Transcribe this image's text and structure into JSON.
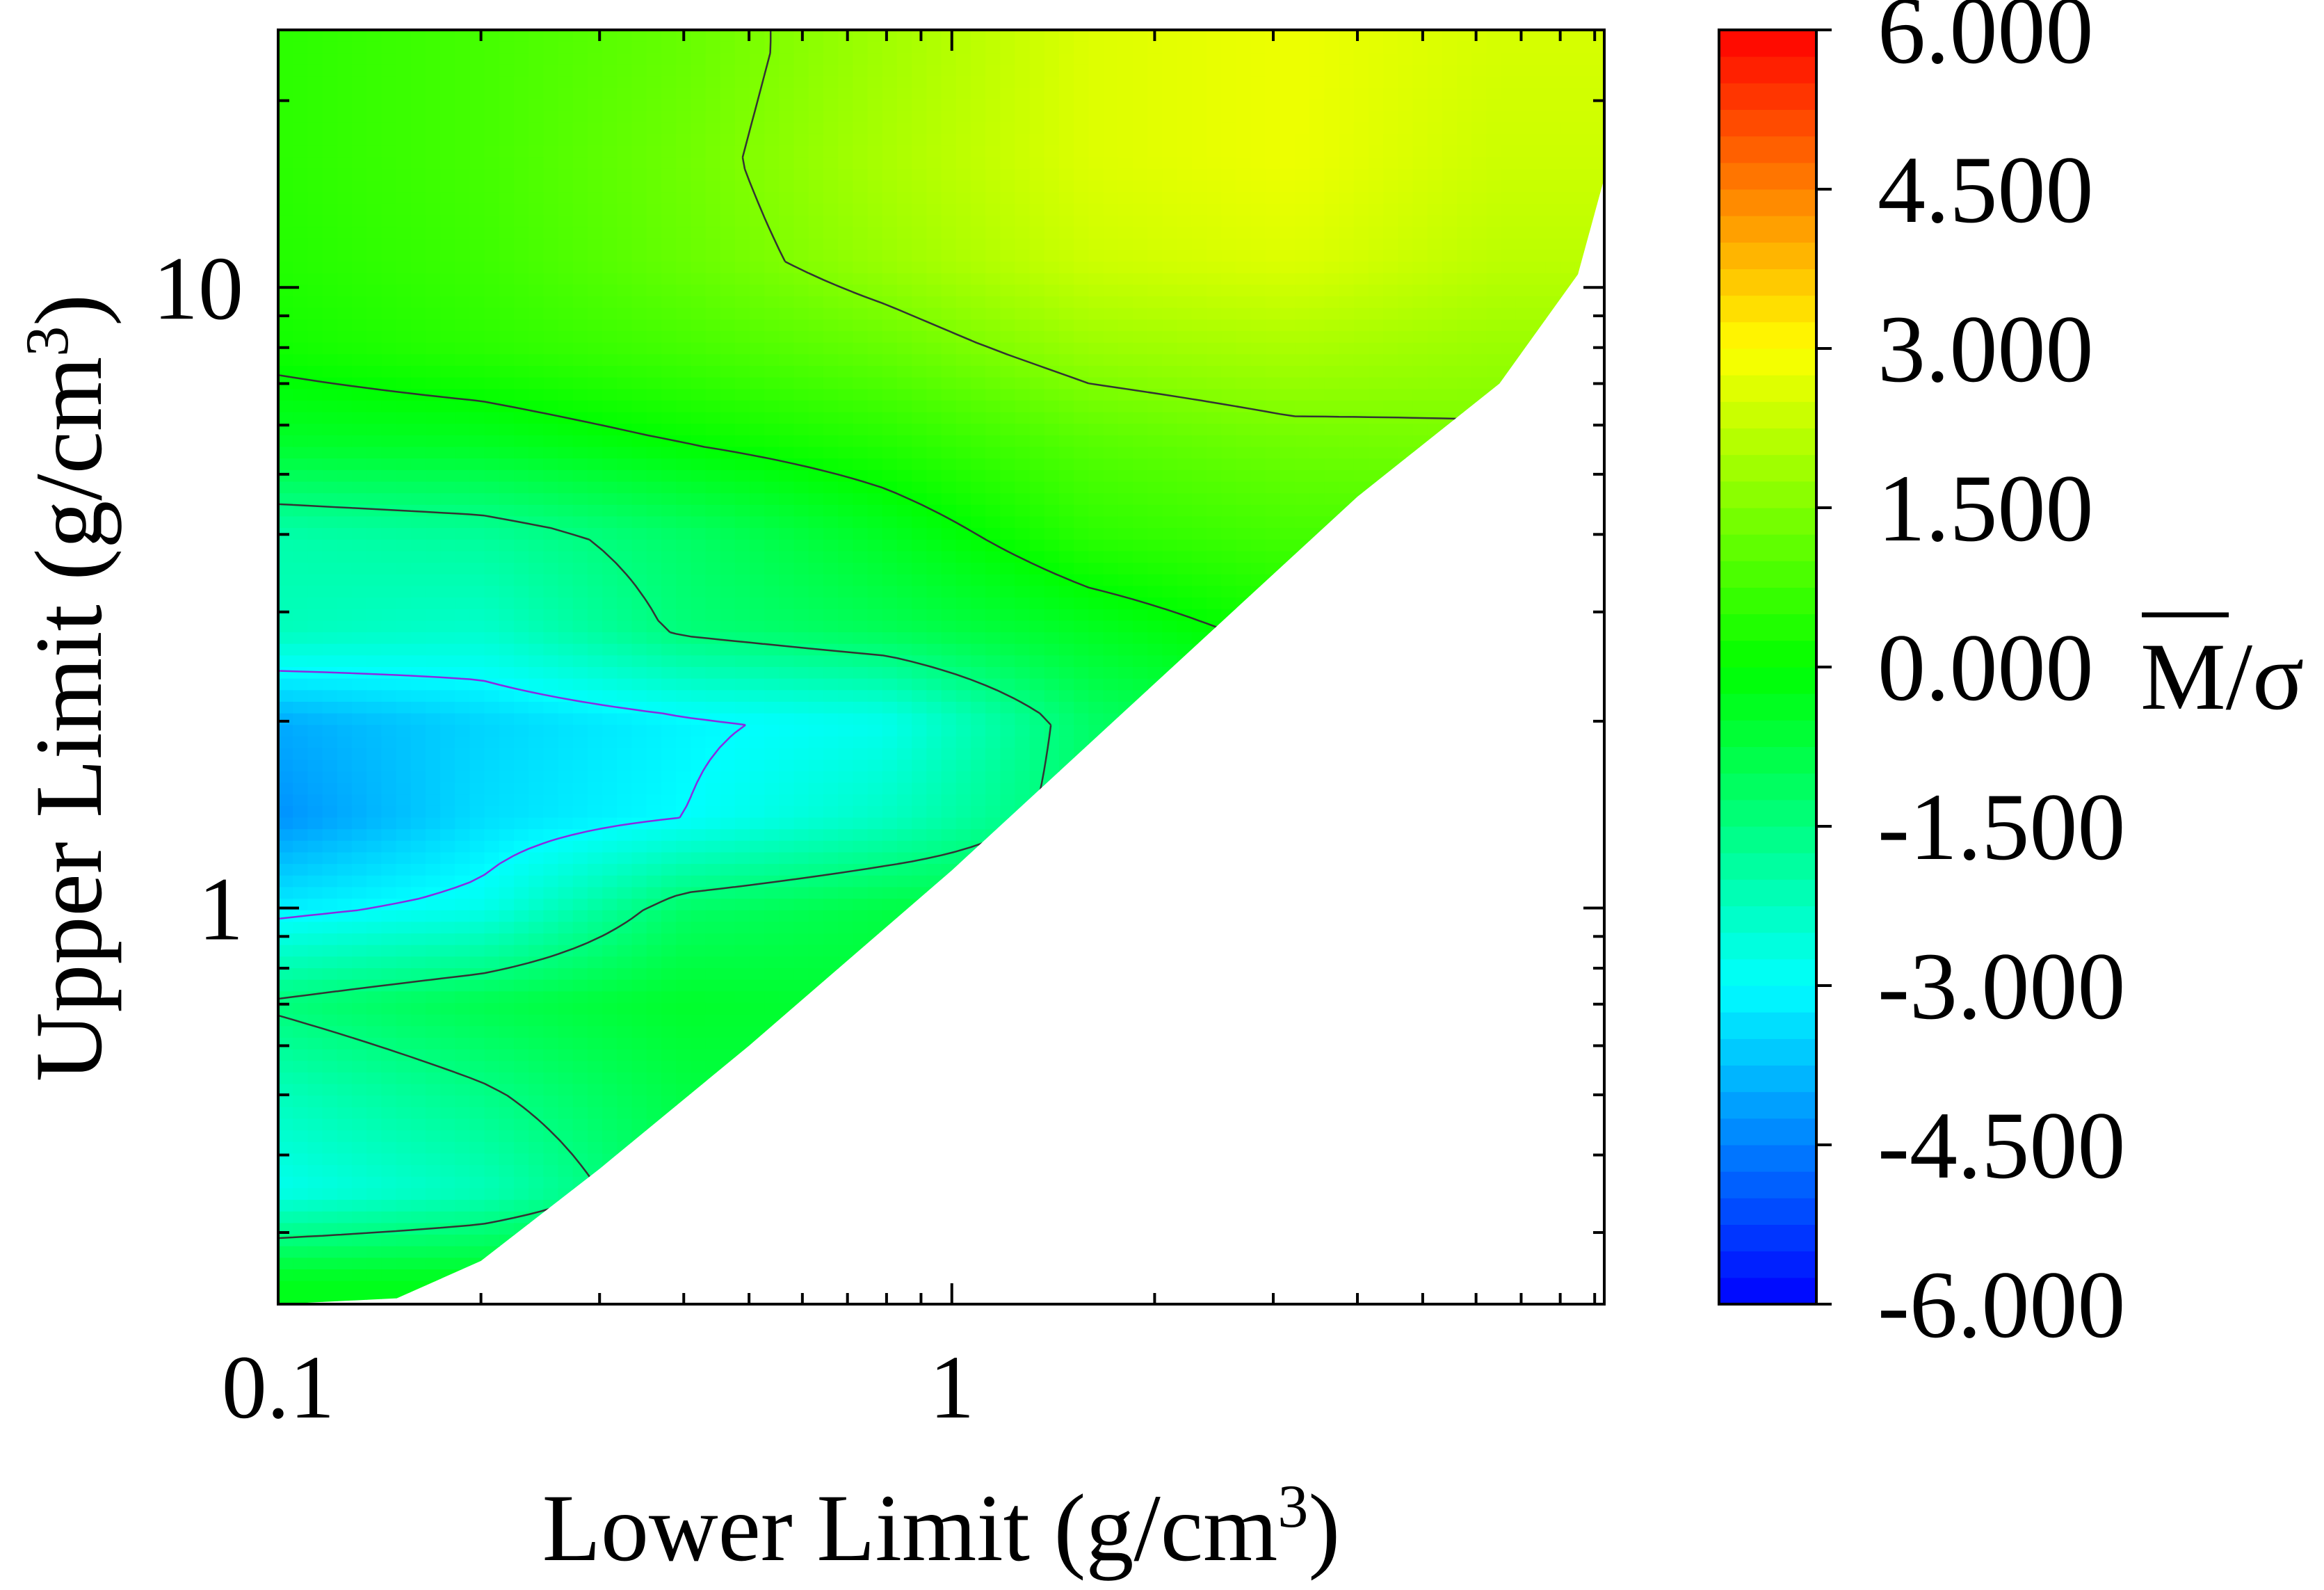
{
  "chart_data": {
    "type": "heatmap",
    "title": "",
    "xlabel": "Lower Limit (g/cm3)",
    "xlabel_parts": {
      "main": "Lower Limit (g/cm",
      "sup": "3",
      "close": ")"
    },
    "ylabel": "Upper Limit (g/cm3)",
    "ylabel_parts": {
      "main": "Upper Limit (g/cm",
      "sup": "3",
      "close": ")"
    },
    "xscale": "log",
    "yscale": "log",
    "xlim": [
      0.1,
      9.3
    ],
    "ylim": [
      0.23,
      26.0
    ],
    "xticks": [
      {
        "value": 0.1,
        "label": "0.1"
      },
      {
        "value": 1,
        "label": "1"
      }
    ],
    "yticks": [
      {
        "value": 1,
        "label": "1"
      },
      {
        "value": 10,
        "label": "10"
      }
    ],
    "region": "upper-left triangle (upper limit > lower limit); lower-right blank",
    "boundary": [
      [
        0.1,
        0.23
      ],
      [
        0.15,
        0.235
      ],
      [
        0.2,
        0.27
      ],
      [
        0.3,
        0.38
      ],
      [
        0.5,
        0.6
      ],
      [
        1.0,
        1.15
      ],
      [
        2.0,
        2.3
      ],
      [
        4.0,
        4.6
      ],
      [
        6.5,
        7.0
      ],
      [
        8.5,
        10.5
      ],
      [
        9.3,
        15.0
      ],
      [
        9.3,
        26.0
      ]
    ],
    "z_grid": {
      "x": [
        0.1,
        0.2,
        0.4,
        0.8,
        1.6,
        3.2,
        6.4,
        9.3
      ],
      "y": [
        0.25,
        0.35,
        0.5,
        0.7,
        1.0,
        1.4,
        2.0,
        2.8,
        4.0,
        5.6,
        8.0,
        11,
        16,
        24
      ],
      "z": [
        [
          -0.3,
          -0.3,
          -0.3,
          -0.3,
          -0.3,
          -0.3,
          -0.3,
          -0.3
        ],
        [
          -2.8,
          -2.2,
          -1.0,
          -0.8,
          -0.8,
          -0.8,
          -0.8,
          -0.8
        ],
        [
          -2.2,
          -1.6,
          -0.8,
          -0.5,
          -0.5,
          -0.5,
          -0.5,
          -0.5
        ],
        [
          -1.4,
          -0.9,
          -0.5,
          -0.6,
          -0.6,
          -0.6,
          -0.6,
          -0.6
        ],
        [
          -3.2,
          -2.8,
          -1.2,
          -0.8,
          -0.8,
          -0.8,
          -0.8,
          -0.8
        ],
        [
          -4.3,
          -3.4,
          -3.0,
          -2.3,
          -1.2,
          -0.9,
          -0.9,
          -0.9
        ],
        [
          -4.0,
          -3.5,
          -3.1,
          -2.8,
          -1.2,
          -0.6,
          -0.6,
          -0.6
        ],
        [
          -2.2,
          -2.4,
          -1.4,
          -1.0,
          -0.4,
          0.2,
          0.2,
          0.2
        ],
        [
          -2.0,
          -1.8,
          -1.2,
          -0.4,
          0.5,
          0.8,
          0.8,
          0.8
        ],
        [
          -0.5,
          -0.4,
          0.0,
          0.4,
          1.0,
          1.3,
          1.4,
          1.4
        ],
        [
          0.2,
          0.5,
          0.8,
          1.2,
          1.8,
          2.0,
          1.8,
          1.8
        ],
        [
          0.4,
          0.7,
          1.2,
          1.8,
          2.4,
          2.6,
          2.2,
          2.2
        ],
        [
          0.5,
          0.8,
          1.3,
          2.0,
          2.6,
          2.8,
          2.4,
          2.4
        ],
        [
          0.5,
          0.8,
          1.2,
          1.9,
          2.6,
          2.8,
          2.5,
          2.5
        ]
      ]
    },
    "colorbar": {
      "label_main": "M",
      "label_overline": true,
      "label_rest": "/σ",
      "range": [
        -6.0,
        6.0
      ],
      "ticks": [
        {
          "value": -6.0,
          "label": "-6.000"
        },
        {
          "value": -4.5,
          "label": "-4.500"
        },
        {
          "value": -3.0,
          "label": "-3.000"
        },
        {
          "value": -1.5,
          "label": "-1.500"
        },
        {
          "value": 0.0,
          "label": "0.000"
        },
        {
          "value": 1.5,
          "label": "1.500"
        },
        {
          "value": 3.0,
          "label": "3.000"
        },
        {
          "value": 4.5,
          "label": "4.500"
        },
        {
          "value": 6.0,
          "label": "6.000"
        }
      ],
      "colormap": [
        "#0000ff",
        "#0080ff",
        "#00ffff",
        "#00ff80",
        "#00ff00",
        "#80ff00",
        "#ffff00",
        "#ff8000",
        "#ff0000"
      ]
    }
  }
}
